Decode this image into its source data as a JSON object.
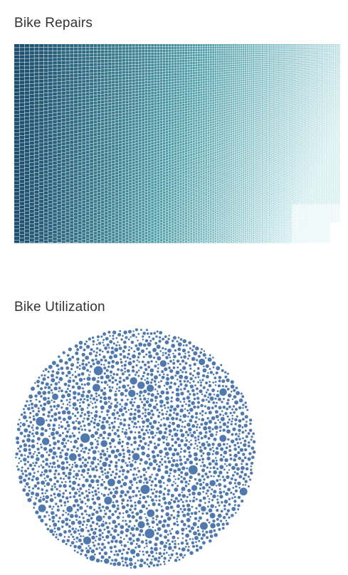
{
  "chart_data": [
    {
      "type": "treemap",
      "title": "Bike Repairs",
      "color_scale": {
        "high": "#1d4f6e",
        "mid": "#4e9ea8",
        "low": "#c9e9ec"
      },
      "mark_color_low": "#e6f4f5",
      "border_color": "#ffffff"
    },
    {
      "type": "bubble",
      "title": "Bike Utilization",
      "color": "#4f79ad",
      "border_color": "#ffffff"
    }
  ]
}
